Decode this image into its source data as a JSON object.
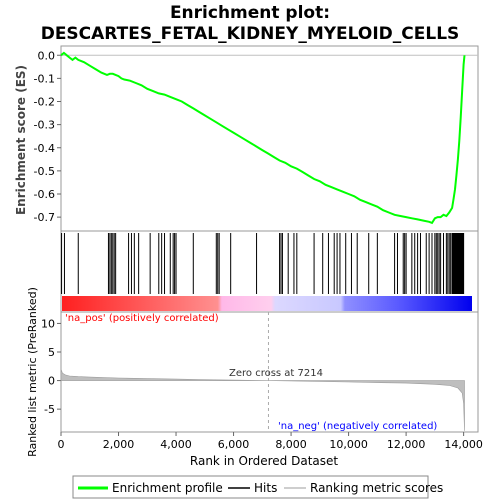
{
  "chart_data": {
    "type": "line",
    "title_line1": "Enrichment plot:",
    "title_line2": "DESCARTES_FETAL_KIDNEY_MYELOID_CELLS",
    "es_panel": {
      "ylabel": "Enrichment score (ES)",
      "ylim": [
        -0.76,
        0.04
      ],
      "yticks": [
        0.0,
        -0.1,
        -0.2,
        -0.3,
        -0.4,
        -0.5,
        -0.6,
        -0.7
      ],
      "ytick_labels": [
        "0.0",
        "-0.1",
        "-0.2",
        "-0.3",
        "-0.4",
        "-0.5",
        "-0.6",
        "-0.7"
      ],
      "series": [
        {
          "name": "Enrichment profile",
          "color": "#00ff00",
          "x": [
            0,
            100,
            200,
            300,
            400,
            500,
            600,
            800,
            1000,
            1200,
            1400,
            1600,
            1700,
            1800,
            1900,
            2000,
            2100,
            2200,
            2400,
            2600,
            2800,
            3000,
            3200,
            3400,
            3600,
            3800,
            4000,
            4200,
            4400,
            4600,
            4800,
            5000,
            5200,
            5400,
            5600,
            5800,
            6000,
            6200,
            6400,
            6600,
            6800,
            7000,
            7200,
            7400,
            7600,
            7800,
            8000,
            8200,
            8400,
            8600,
            8800,
            9000,
            9200,
            9400,
            9600,
            9800,
            10000,
            10200,
            10400,
            10600,
            10800,
            11000,
            11200,
            11400,
            11600,
            11800,
            12000,
            12200,
            12400,
            12600,
            12800,
            12900,
            13000,
            13100,
            13200,
            13300,
            13400,
            13500,
            13600,
            13650,
            13700,
            13750,
            13800,
            13850,
            13900,
            13950,
            14000,
            14030
          ],
          "y": [
            0.0,
            0.01,
            0.0,
            -0.01,
            -0.02,
            -0.01,
            -0.02,
            -0.03,
            -0.045,
            -0.06,
            -0.075,
            -0.085,
            -0.08,
            -0.08,
            -0.085,
            -0.09,
            -0.1,
            -0.105,
            -0.11,
            -0.12,
            -0.13,
            -0.145,
            -0.155,
            -0.165,
            -0.17,
            -0.18,
            -0.19,
            -0.2,
            -0.215,
            -0.23,
            -0.245,
            -0.26,
            -0.275,
            -0.29,
            -0.305,
            -0.32,
            -0.335,
            -0.35,
            -0.365,
            -0.38,
            -0.395,
            -0.41,
            -0.425,
            -0.44,
            -0.455,
            -0.465,
            -0.48,
            -0.49,
            -0.505,
            -0.52,
            -0.535,
            -0.545,
            -0.56,
            -0.57,
            -0.58,
            -0.59,
            -0.6,
            -0.61,
            -0.625,
            -0.635,
            -0.645,
            -0.655,
            -0.67,
            -0.68,
            -0.69,
            -0.695,
            -0.7,
            -0.705,
            -0.71,
            -0.715,
            -0.72,
            -0.725,
            -0.705,
            -0.7,
            -0.7,
            -0.69,
            -0.695,
            -0.68,
            -0.66,
            -0.62,
            -0.58,
            -0.52,
            -0.45,
            -0.37,
            -0.27,
            -0.15,
            -0.04,
            0.0
          ]
        }
      ]
    },
    "hits": [
      20,
      120,
      600,
      1650,
      1700,
      1750,
      1800,
      1850,
      1900,
      2350,
      2450,
      2550,
      2700,
      3100,
      3400,
      3500,
      3600,
      3800,
      3900,
      3950,
      4000,
      4600,
      5400,
      5450,
      5500,
      5900,
      6800,
      7600,
      7650,
      7700,
      7900,
      8100,
      8200,
      8800,
      9100,
      9300,
      9500,
      9600,
      9700,
      9900,
      10100,
      10300,
      10700,
      11000,
      11600,
      11700,
      11900,
      11950,
      12000,
      12200,
      12300,
      12400,
      12500,
      12700,
      12800,
      12900,
      13000,
      13050,
      13100,
      13150,
      13200,
      13300,
      13400,
      13450,
      13500,
      13550,
      13600,
      13620,
      13640,
      13660,
      13680,
      13700,
      13720,
      13740,
      13760,
      13780,
      13800,
      13820,
      13840,
      13860,
      13880,
      13900,
      13920,
      13940,
      13960,
      13980,
      14000
    ],
    "metric_panel": {
      "ylabel": "Ranked list metric (PreRanked)",
      "ylim": [
        -9,
        12
      ],
      "yticks": [
        10,
        5,
        0,
        -5
      ],
      "ytick_labels": [
        "10",
        "5",
        "0",
        "-5"
      ],
      "x": [
        0,
        50,
        150,
        300,
        600,
        1000,
        2000,
        3000,
        4000,
        5000,
        6000,
        7214,
        8000,
        9000,
        10000,
        11000,
        12000,
        12500,
        13000,
        13500,
        13800,
        13950,
        14000,
        14030
      ],
      "y": [
        2.0,
        1.3,
        1.0,
        0.8,
        0.7,
        0.6,
        0.45,
        0.35,
        0.25,
        0.15,
        0.08,
        0.0,
        -0.08,
        -0.15,
        -0.25,
        -0.35,
        -0.45,
        -0.55,
        -0.65,
        -0.85,
        -1.3,
        -2.2,
        -4.0,
        -8.8
      ],
      "fill_color": "#bebebe",
      "label_pos": "'na_pos' (positively correlated)",
      "label_pos_color": "#ff0000",
      "label_neg": "'na_neg' (negatively correlated)",
      "label_neg_color": "#0000ff",
      "zero_cross_label": "Zero cross at 7214",
      "zero_cross_x": 7214
    },
    "xaxis": {
      "xlabel": "Rank in Ordered Dataset",
      "xlim": [
        0,
        14500
      ],
      "xticks": [
        0,
        2000,
        4000,
        6000,
        8000,
        10000,
        12000,
        14000
      ],
      "xtick_labels": [
        "0",
        "2,000",
        "4,000",
        "6,000",
        "8,000",
        "10,000",
        "12,000",
        "14,000"
      ]
    },
    "legend": {
      "placement": "bottom",
      "items": [
        {
          "label": "Enrichment profile",
          "color": "#00ff00"
        },
        {
          "label": "Hits",
          "color": "#000000"
        },
        {
          "label": "Ranking metric scores",
          "color": "#bebebe"
        }
      ]
    },
    "grid": false
  }
}
